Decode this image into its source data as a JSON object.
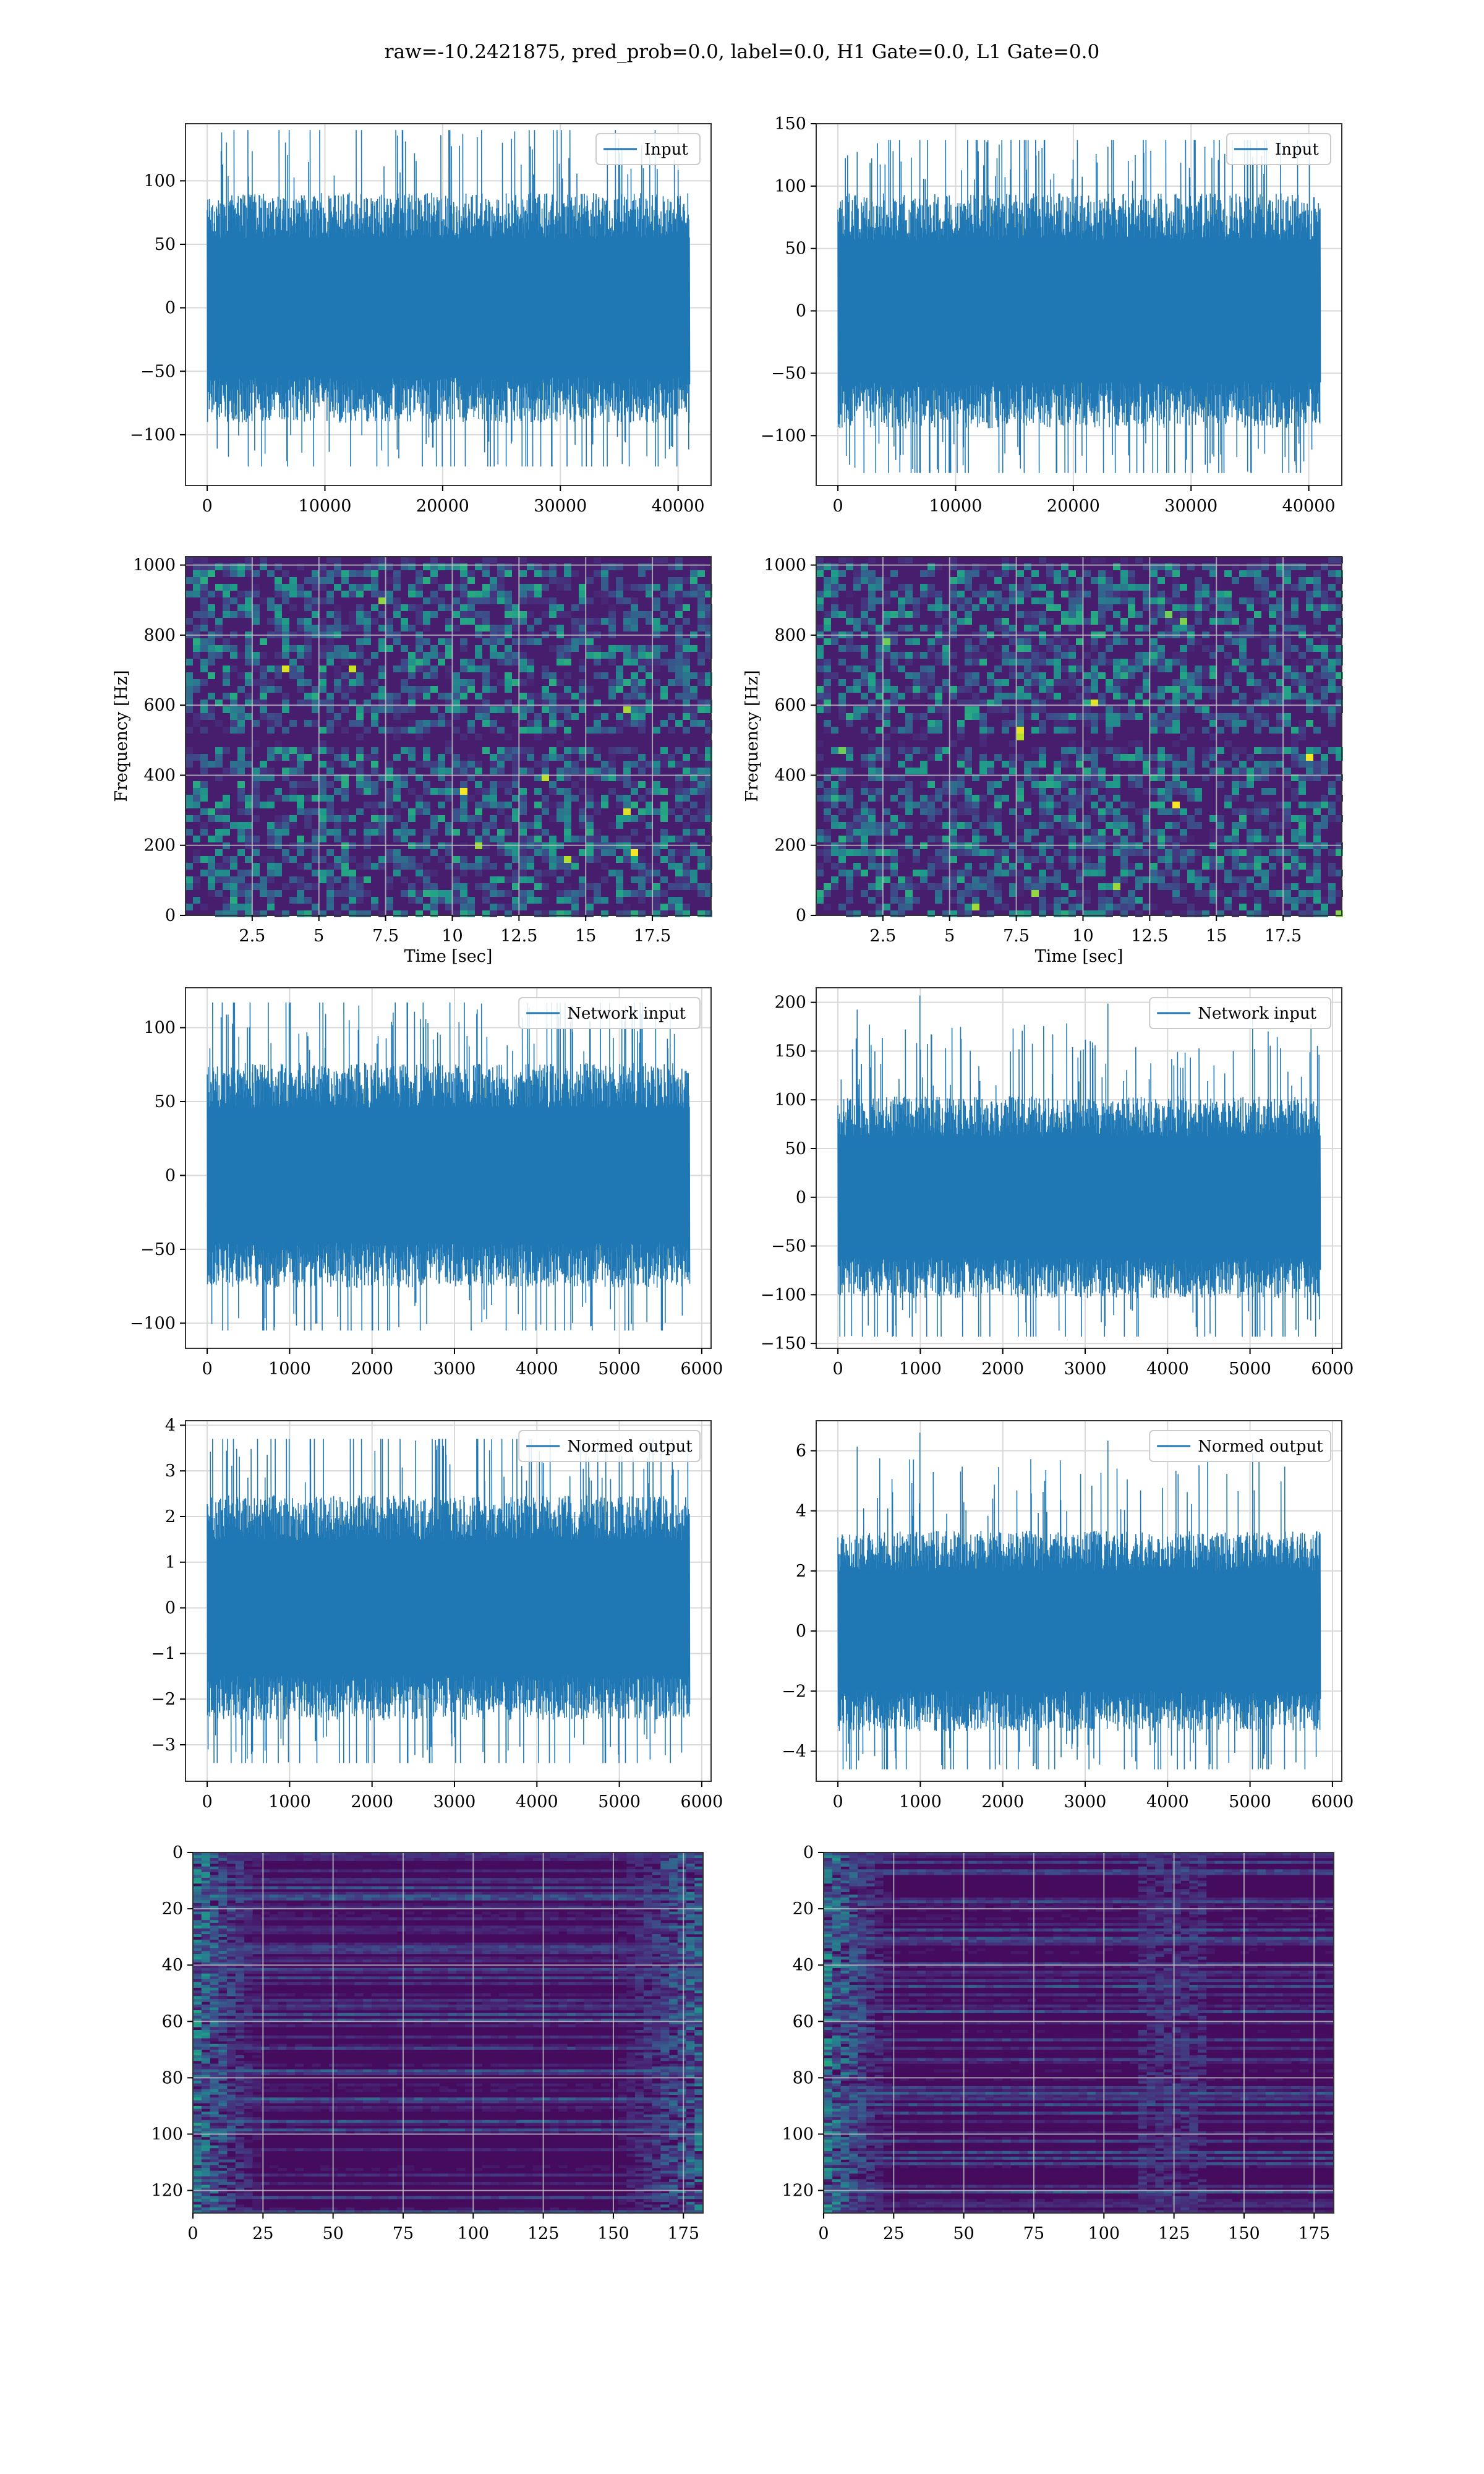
{
  "title": "raw=-10.2421875, pred_prob=0.0, label=0.0, H1 Gate=0.0, L1 Gate=0.0",
  "colors": {
    "line": "#1f77b4",
    "grid": "#d9d9d9",
    "axes": "#000000"
  },
  "chart_data": [
    {
      "type": "line",
      "legend": "Input",
      "legend_loc": "top-right",
      "x_range": [
        0,
        40960
      ],
      "ylim": [
        -140,
        145
      ],
      "y_extent": [
        -125,
        140
      ],
      "xticks": [
        0,
        10000,
        20000,
        30000,
        40000
      ],
      "yticks": [
        -100,
        -50,
        0,
        50,
        100
      ],
      "xlabel": "",
      "ylabel": "",
      "grid": true
    },
    {
      "type": "line",
      "legend": "Input",
      "legend_loc": "top-right",
      "x_range": [
        0,
        40960
      ],
      "ylim": [
        -140,
        150
      ],
      "y_extent": [
        -130,
        137
      ],
      "xticks": [
        0,
        10000,
        20000,
        30000,
        40000
      ],
      "yticks": [
        -100,
        -50,
        0,
        50,
        100,
        150
      ],
      "xlabel": "",
      "ylabel": "",
      "grid": true
    },
    {
      "type": "heatmap",
      "colormap": "viridis",
      "xlim": [
        0,
        19.7
      ],
      "ylim": [
        0,
        1024
      ],
      "xticks": [
        2.5,
        5.0,
        7.5,
        10.0,
        12.5,
        15.0,
        17.5
      ],
      "yticks": [
        0,
        200,
        400,
        600,
        800,
        1000
      ],
      "xlabel": "Time [sec]",
      "ylabel": "Frequency [Hz]",
      "grid": true
    },
    {
      "type": "heatmap",
      "colormap": "viridis",
      "xlim": [
        0,
        19.7
      ],
      "ylim": [
        0,
        1024
      ],
      "xticks": [
        2.5,
        5.0,
        7.5,
        10.0,
        12.5,
        15.0,
        17.5
      ],
      "yticks": [
        0,
        200,
        400,
        600,
        800,
        1000
      ],
      "xlabel": "Time [sec]",
      "ylabel": "Frequency [Hz]",
      "grid": true
    },
    {
      "type": "line",
      "legend": "Network input",
      "legend_loc": "top-right",
      "x_range": [
        0,
        5850
      ],
      "ylim": [
        -117,
        127
      ],
      "y_extent": [
        -105,
        117
      ],
      "xticks": [
        0,
        1000,
        2000,
        3000,
        4000,
        5000,
        6000
      ],
      "yticks": [
        -100,
        -50,
        0,
        50,
        100
      ],
      "xlabel": "",
      "ylabel": "",
      "grid": true
    },
    {
      "type": "line",
      "legend": "Network input",
      "legend_loc": "top-right",
      "x_range": [
        0,
        5850
      ],
      "ylim": [
        -155,
        215
      ],
      "y_extent": [
        -143,
        207
      ],
      "xticks": [
        0,
        1000,
        2000,
        3000,
        4000,
        5000,
        6000
      ],
      "yticks": [
        -150,
        -100,
        -50,
        0,
        50,
        100,
        150,
        200
      ],
      "xlabel": "",
      "ylabel": "",
      "grid": true
    },
    {
      "type": "line",
      "legend": "Normed output",
      "legend_loc": "top-right",
      "x_range": [
        0,
        5850
      ],
      "ylim": [
        -3.8,
        4.1
      ],
      "y_extent": [
        -3.4,
        3.7
      ],
      "xticks": [
        0,
        1000,
        2000,
        3000,
        4000,
        5000,
        6000
      ],
      "yticks": [
        -3,
        -2,
        -1,
        0,
        1,
        2,
        3,
        4
      ],
      "xlabel": "",
      "ylabel": "",
      "grid": true
    },
    {
      "type": "line",
      "legend": "Normed output",
      "legend_loc": "top-right",
      "x_range": [
        0,
        5850
      ],
      "ylim": [
        -5.0,
        7.0
      ],
      "y_extent": [
        -4.6,
        6.6
      ],
      "xticks": [
        0,
        1000,
        2000,
        3000,
        4000,
        5000,
        6000
      ],
      "yticks": [
        -4,
        -2,
        0,
        2,
        4,
        6
      ],
      "xlabel": "",
      "ylabel": "",
      "grid": true
    },
    {
      "type": "heatmap",
      "colormap": "viridis",
      "y_inverted": true,
      "xlim": [
        0,
        182
      ],
      "ylim": [
        128,
        0
      ],
      "xticks": [
        0,
        25,
        50,
        75,
        100,
        125,
        150,
        175
      ],
      "yticks": [
        0,
        20,
        40,
        60,
        80,
        100,
        120
      ],
      "xlabel": "",
      "ylabel": "",
      "grid": true
    },
    {
      "type": "heatmap",
      "colormap": "viridis",
      "y_inverted": true,
      "xlim": [
        0,
        182
      ],
      "ylim": [
        128,
        0
      ],
      "xticks": [
        0,
        25,
        50,
        75,
        100,
        125,
        150,
        175
      ],
      "yticks": [
        0,
        20,
        40,
        60,
        80,
        100,
        120
      ],
      "xlabel": "",
      "ylabel": "",
      "grid": true
    }
  ]
}
